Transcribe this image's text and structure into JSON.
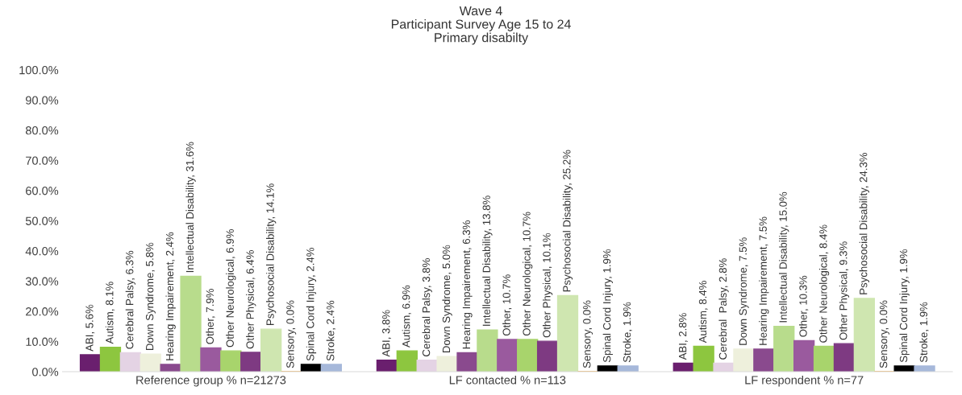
{
  "chart_data": {
    "type": "bar",
    "title": "Wave 4\nParticipant Survey Age 15 to 24\nPrimary disabilty",
    "categories": [
      "Reference group % n=21273",
      "LF contacted % n=113",
      "LF respondent % n=77"
    ],
    "series": [
      {
        "color": "#6a1f6e",
        "values": [
          5.6,
          3.8,
          2.8
        ],
        "value_labels": [
          "ABI, 5.6%",
          "ABI, 3.8%",
          "ABI, 2.8%"
        ]
      },
      {
        "color": "#8dc63f",
        "values": [
          8.1,
          6.9,
          8.4
        ],
        "value_labels": [
          "Autism, 8.1%",
          "Autism, 6.9%",
          "Autism, 8.4%"
        ]
      },
      {
        "color": "#e4d3e4",
        "values": [
          6.3,
          3.8,
          2.8
        ],
        "value_labels": [
          "Cerebral Palsy, 6.3%",
          "Cerebral Palsy, 3.8%",
          "Cerebral  Palsy, 2.8%"
        ]
      },
      {
        "color": "#eef0dc",
        "values": [
          5.8,
          5.0,
          7.5
        ],
        "value_labels": [
          "Down Syndrome, 5.8%",
          "Down Syndrome, 5.0%",
          "Down Syndrome, 7.5%"
        ]
      },
      {
        "color": "#8a4a8e",
        "values": [
          2.4,
          6.3,
          7.5
        ],
        "value_labels": [
          "Hearing Impairement, 2.4%",
          "Hearing Impairement, 6.3%",
          "Hearing Impairement, 7.5%"
        ]
      },
      {
        "color": "#b8dc8c",
        "values": [
          31.6,
          13.8,
          15.0
        ],
        "value_labels": [
          "Intellectual Disability, 31.6%",
          "Intellectual Disability, 13.8%",
          "Intellectual Disability, 15.0%"
        ]
      },
      {
        "color": "#9a5a9e",
        "values": [
          7.9,
          10.7,
          10.3
        ],
        "value_labels": [
          "Other, 7.9%",
          "Other, 10.7%",
          "Other, 10.3%"
        ]
      },
      {
        "color": "#a8d46c",
        "values": [
          6.9,
          10.7,
          8.4
        ],
        "value_labels": [
          "Other Neurological, 6.9%",
          "Other Neurological, 10.7%",
          "Other Neurological, 8.4%"
        ]
      },
      {
        "color": "#7e3a82",
        "values": [
          6.4,
          10.1,
          9.3
        ],
        "value_labels": [
          "Other Physical, 6.4%",
          "Other Physical, 10.1%",
          "Other Physical, 9.3%"
        ]
      },
      {
        "color": "#cfe6b0",
        "values": [
          14.1,
          25.2,
          24.3
        ],
        "value_labels": [
          "Psychosocial Disability, 14.1%",
          "Psychosocial Disability, 25.2%",
          "Psychosocial Disability, 24.3%"
        ]
      },
      {
        "color": "#f0a030",
        "values": [
          0.0,
          0.0,
          0.0
        ],
        "value_labels": [
          "Sensory, 0.0%",
          "Sensory, 0.0%",
          "Sensory, 0.0%"
        ]
      },
      {
        "color": "#000000",
        "values": [
          2.4,
          1.9,
          1.9
        ],
        "value_labels": [
          "Spinal Cord Injury, 2.4%",
          "Spinal Cord Injury, 1.9%",
          "Spinal Cord Injury, 1.9%"
        ]
      },
      {
        "color": "#a6b8da",
        "values": [
          2.4,
          1.9,
          1.9
        ],
        "value_labels": [
          "Stroke, 2.4%",
          "Stroke, 1.9%",
          "Stroke, 1.9%"
        ]
      }
    ],
    "ylim": [
      0,
      100
    ],
    "yticks": [
      {
        "value": 0,
        "label": "0.0%"
      },
      {
        "value": 10,
        "label": "10.0%"
      },
      {
        "value": 20,
        "label": "20.0%"
      },
      {
        "value": 30,
        "label": "30.0%"
      },
      {
        "value": 40,
        "label": "40.0%"
      },
      {
        "value": 50,
        "label": "50.0%"
      },
      {
        "value": 60,
        "label": "60.0%"
      },
      {
        "value": 70,
        "label": "70.0%"
      },
      {
        "value": 80,
        "label": "80.0%"
      },
      {
        "value": 90,
        "label": "90.0%"
      },
      {
        "value": 100,
        "label": "100.0%"
      }
    ],
    "grid": false,
    "legend": false
  }
}
